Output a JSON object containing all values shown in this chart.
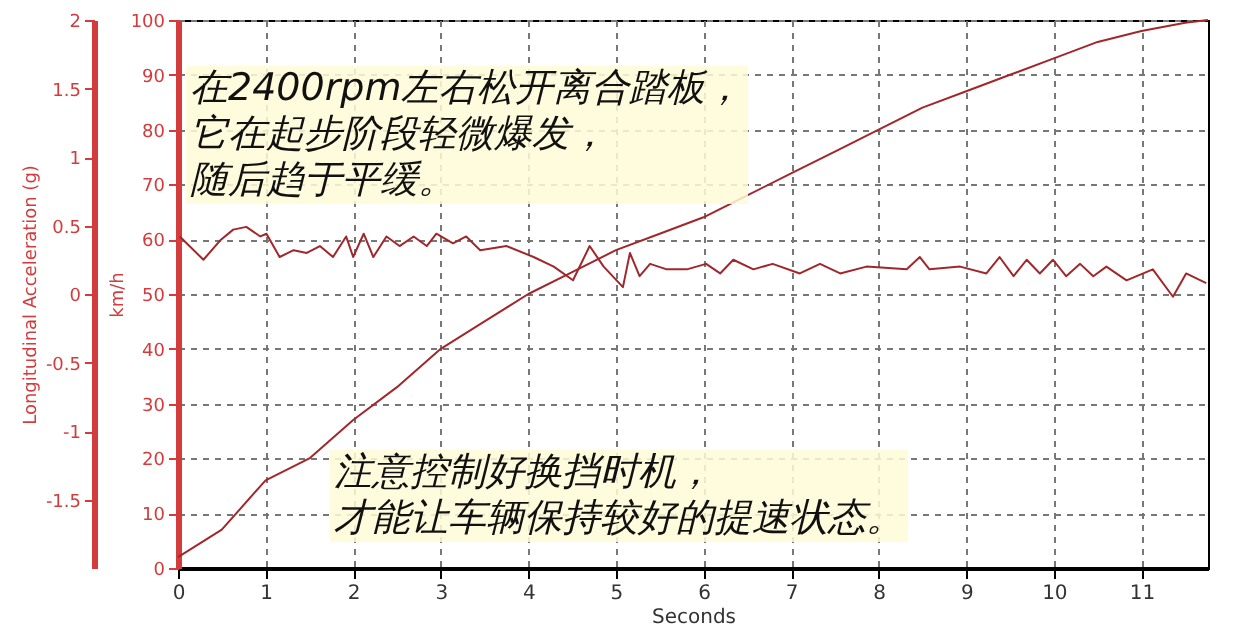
{
  "chart_data": {
    "type": "line",
    "xlabel": "Seconds",
    "ylabel": "Longitudinal Acceleration (g)",
    "y2label": "km/h",
    "xlim": [
      0,
      11.76
    ],
    "xticks": [
      0,
      1,
      2,
      3,
      4,
      5,
      6,
      7,
      8,
      9,
      10,
      11
    ],
    "ylim": [
      -2,
      2
    ],
    "yticks": [
      -1.5,
      -1,
      -0.5,
      0,
      0.5,
      1,
      1.5,
      2
    ],
    "y2lim": [
      0,
      100
    ],
    "y2ticks": [
      0,
      10,
      20,
      30,
      40,
      50,
      60,
      70,
      80,
      90,
      100
    ],
    "grid": true,
    "line_style": "solid",
    "series": [
      {
        "color": "#a0282d",
        "x": [
          0.02,
          0.29,
          0.48,
          0.63,
          0.78,
          0.94,
          1.01,
          1.16,
          1.32,
          1.47,
          1.62,
          1.77,
          1.92,
          2.0,
          2.12,
          2.23,
          2.38,
          2.53,
          2.69,
          2.84,
          2.95,
          3.14,
          3.29,
          3.45,
          3.75,
          4.06,
          4.29,
          4.51,
          4.7,
          4.86,
          5.08,
          5.16,
          5.27,
          5.39,
          5.58,
          5.81,
          6.03,
          6.19,
          6.34,
          6.57,
          6.79,
          7.1,
          7.33,
          7.56,
          7.86,
          8.32,
          8.47,
          8.58,
          8.93,
          9.23,
          9.38,
          9.54,
          9.69,
          9.84,
          9.99,
          10.14,
          10.3,
          10.45,
          10.6,
          10.83,
          11.13,
          11.36,
          11.51,
          11.74
        ],
        "values": [
          0.42,
          0.25,
          0.39,
          0.47,
          0.49,
          0.42,
          0.44,
          0.27,
          0.32,
          0.3,
          0.35,
          0.27,
          0.42,
          0.27,
          0.44,
          0.27,
          0.42,
          0.35,
          0.42,
          0.35,
          0.44,
          0.37,
          0.42,
          0.32,
          0.35,
          0.27,
          0.2,
          0.1,
          0.35,
          0.2,
          0.05,
          0.3,
          0.13,
          0.22,
          0.18,
          0.18,
          0.22,
          0.15,
          0.25,
          0.18,
          0.22,
          0.15,
          0.22,
          0.15,
          0.2,
          0.18,
          0.27,
          0.18,
          0.2,
          0.15,
          0.27,
          0.13,
          0.25,
          0.15,
          0.25,
          0.13,
          0.22,
          0.13,
          0.2,
          0.1,
          0.18,
          -0.02,
          0.15,
          0.08
        ]
      },
      {
        "color": "#a0282d",
        "axis": "y2",
        "x": [
          0,
          0.5,
          1,
          1.5,
          2,
          2.5,
          3,
          3.5,
          4,
          4.5,
          5,
          5.5,
          6,
          6.5,
          7,
          7.5,
          8,
          8.5,
          9,
          9.5,
          10,
          10.5,
          11,
          11.5,
          11.76
        ],
        "values": [
          2,
          7,
          16,
          20,
          27,
          33,
          40,
          45,
          50,
          54,
          58,
          61,
          64,
          68,
          72,
          76,
          80,
          84,
          87,
          90,
          93,
          96,
          98,
          99.5,
          100
        ]
      }
    ],
    "annotations": [
      "在2400rpm左右松开离合踏板，它在起步阶段轻微爆发，随后趋于平缓。",
      "注意控制好换挡时机，才能让车辆保持较好的提速状态。"
    ]
  }
}
